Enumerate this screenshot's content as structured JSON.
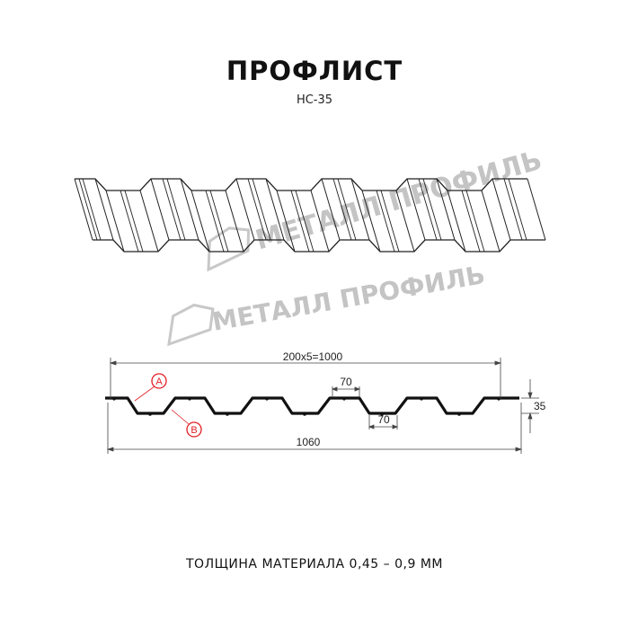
{
  "header": {
    "title": "ПРОФЛИСТ",
    "subtitle": "НС-35"
  },
  "watermark": {
    "logo_text": "МЕТАЛЛ ПРОФИЛЬ",
    "color": "#c4c4c4"
  },
  "drawing": {
    "dimensions": {
      "pitch": "200x5=1000",
      "total_width": "1060",
      "top_flange": "70",
      "bottom_flange": "70",
      "height": "35"
    },
    "callouts": [
      {
        "label": "A",
        "color": "#e31e24"
      },
      {
        "label": "B",
        "color": "#e31e24"
      }
    ]
  },
  "footer": {
    "thickness": "ТОЛЩИНА МАТЕРИАЛА 0,45 – 0,9 ММ"
  }
}
